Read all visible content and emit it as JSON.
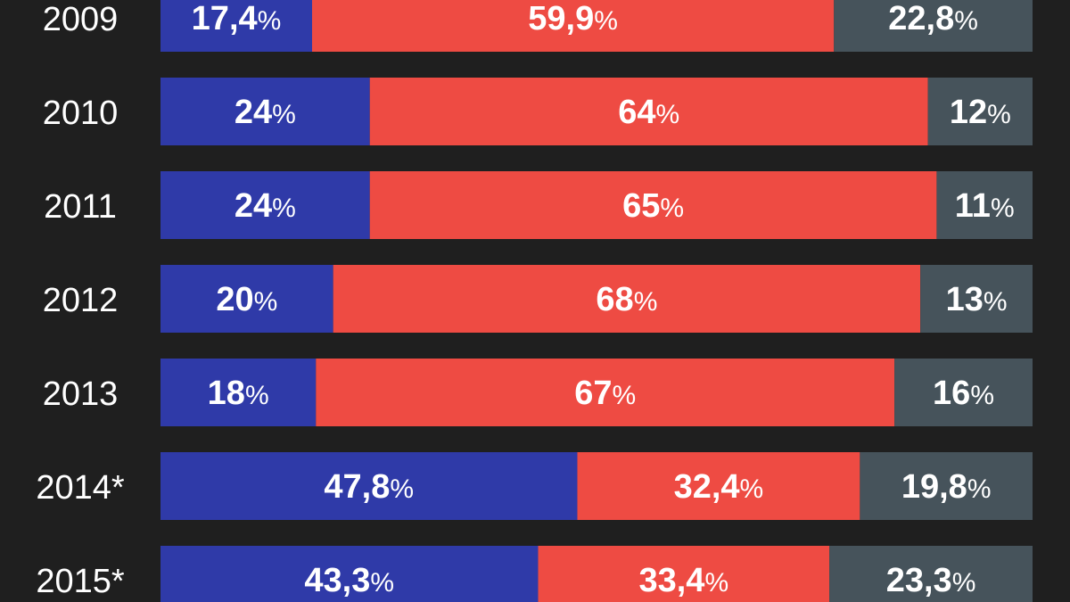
{
  "chart_data": {
    "type": "bar",
    "stacked": true,
    "orientation": "horizontal",
    "categories": [
      "2009",
      "2010",
      "2011",
      "2012",
      "2013",
      "2014*",
      "2015*"
    ],
    "series": [
      {
        "values": [
          17.4,
          24,
          24,
          20,
          18,
          47.8,
          43.3
        ],
        "labels": [
          "17,4",
          "24",
          "24",
          "20",
          "18",
          "47,8",
          "43,3"
        ],
        "color": "#2f3aa8"
      },
      {
        "values": [
          59.9,
          64,
          65,
          68,
          67,
          32.4,
          33.4
        ],
        "labels": [
          "59,9",
          "64",
          "65",
          "68",
          "67",
          "32,4",
          "33,4"
        ],
        "color": "#ee4b43"
      },
      {
        "values": [
          22.8,
          12,
          11,
          13,
          16,
          19.8,
          23.3
        ],
        "labels": [
          "22,8",
          "12",
          "11",
          "13",
          "16",
          "19,8",
          "23,3"
        ],
        "color": "#46535b"
      }
    ],
    "unit_suffix": "%",
    "xlim": [
      0,
      100
    ]
  }
}
